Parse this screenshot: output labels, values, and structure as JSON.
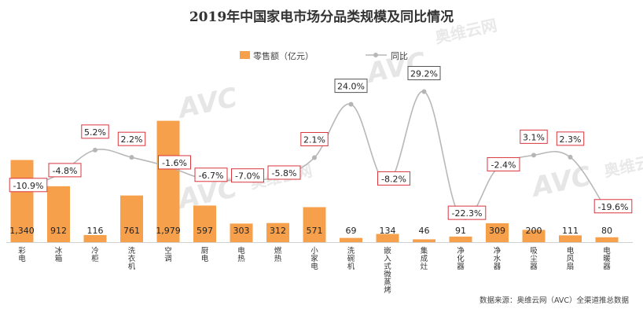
{
  "chart_data": {
    "type": "bar",
    "title": "2019年中国家电市场分品类规模及同比情况",
    "categories": [
      "彩电",
      "冰箱",
      "冷柜",
      "洗衣机",
      "空调",
      "厨电",
      "电热",
      "燃热",
      "小家电",
      "洗碗机",
      "嵌入式微蒸烤",
      "集成灶",
      "净化器",
      "净水器",
      "吸尘器",
      "电风扇",
      "电暖器"
    ],
    "series": [
      {
        "name": "零售额（亿元）",
        "type": "bar",
        "values": [
          1340,
          912,
          116,
          761,
          1979,
          597,
          303,
          312,
          571,
          69,
          134,
          46,
          91,
          309,
          200,
          111,
          80
        ],
        "labels": [
          "1,340",
          "912",
          "116",
          "761",
          "1,979",
          "597",
          "303",
          "312",
          "571",
          "69",
          "134",
          "46",
          "91",
          "309",
          "200",
          "111",
          "80"
        ]
      },
      {
        "name": "同比",
        "type": "line",
        "values": [
          -10.9,
          -4.8,
          5.2,
          2.2,
          -1.6,
          -6.7,
          -7.0,
          -5.8,
          2.1,
          24.0,
          -8.2,
          29.2,
          -22.3,
          -2.4,
          3.1,
          2.3,
          -19.6
        ],
        "labels": [
          "-10.9%",
          "-4.8%",
          "5.2%",
          "2.2%",
          "-1.6%",
          "-6.7%",
          "-7.0%",
          "-5.8%",
          "2.1%",
          "24.0%",
          "-8.2%",
          "29.2%",
          "-22.3%",
          "-2.4%",
          "3.1%",
          "2.3%",
          "-19.6%"
        ]
      }
    ],
    "legend_position": "top-center",
    "grid": false,
    "colors": {
      "bar": "#f7a04b",
      "line": "#b8b8b8",
      "label_box_border": "#d9363e",
      "label_box_border_highlight": "#555555"
    }
  },
  "source": "数据来源：奥维云网（AVC）全渠道推总数据",
  "watermark": "AVC 奥维云网"
}
